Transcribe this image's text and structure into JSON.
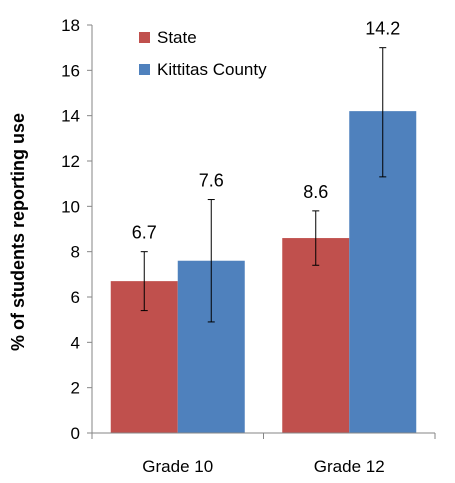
{
  "chart_data": {
    "type": "bar",
    "categories": [
      "Grade 10",
      "Grade 12"
    ],
    "ylabel": "% of students reporting use",
    "xlabel": "",
    "ylim": [
      0,
      18
    ],
    "yticks": [
      0,
      2,
      4,
      6,
      8,
      10,
      12,
      14,
      16,
      18
    ],
    "grid": false,
    "legend_position": "top-left",
    "series": [
      {
        "name": "State",
        "color": "#C0504D",
        "values": [
          6.7,
          8.6
        ],
        "labels": [
          "6.7",
          "8.6"
        ],
        "error_low": [
          5.4,
          7.4
        ],
        "error_high": [
          8.0,
          9.8
        ]
      },
      {
        "name": "Kittitas County",
        "color": "#4F81BD",
        "values": [
          7.6,
          14.2
        ],
        "labels": [
          "7.6",
          "14.2"
        ],
        "error_low": [
          4.9,
          11.3
        ],
        "error_high": [
          10.3,
          17.0
        ]
      }
    ]
  }
}
